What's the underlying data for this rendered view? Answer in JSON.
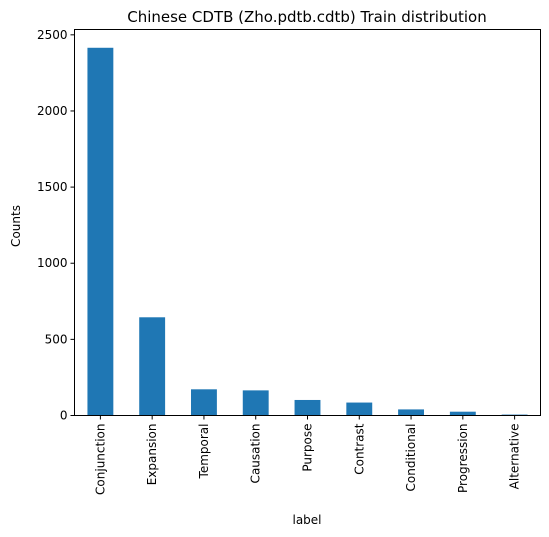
{
  "chart_data": {
    "type": "bar",
    "title": "Chinese CDTB (Zho.pdtb.cdtb) Train distribution",
    "xlabel": "label",
    "ylabel": "Counts",
    "categories": [
      "Conjunction",
      "Expansion",
      "Temporal",
      "Causation",
      "Purpose",
      "Contrast",
      "Conditional",
      "Progression",
      "Alternative"
    ],
    "values": [
      2415,
      645,
      172,
      165,
      102,
      85,
      40,
      25,
      6
    ],
    "ylim": [
      0,
      2535
    ],
    "yticks": [
      0,
      500,
      1000,
      1500,
      2000,
      2500
    ],
    "bar_color": "#1f77b4",
    "grid": false,
    "legend": "none"
  }
}
